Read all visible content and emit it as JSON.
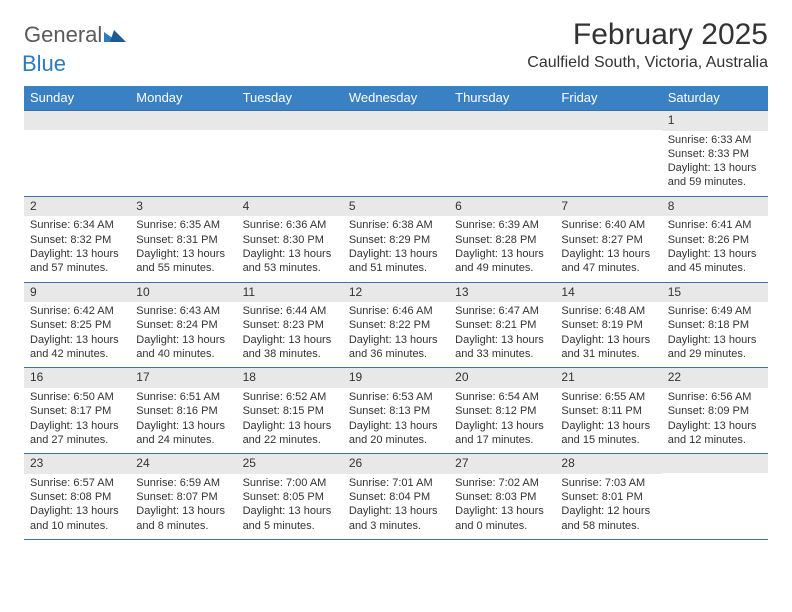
{
  "brand": {
    "word1": "General",
    "word2": "Blue"
  },
  "title": "February 2025",
  "location": "Caulfield South, Victoria, Australia",
  "colors": {
    "header_bg": "#3a81c4",
    "header_text": "#ffffff",
    "rule": "#3c6fa8",
    "daynum_bg": "#e8e8e8",
    "text": "#333333",
    "brand_blue": "#2b7bbf",
    "brand_gray": "#5a5a5a"
  },
  "weekdays": [
    "Sunday",
    "Monday",
    "Tuesday",
    "Wednesday",
    "Thursday",
    "Friday",
    "Saturday"
  ],
  "weeks": [
    [
      {
        "n": "",
        "sunrise": "",
        "sunset": "",
        "daylight": ""
      },
      {
        "n": "",
        "sunrise": "",
        "sunset": "",
        "daylight": ""
      },
      {
        "n": "",
        "sunrise": "",
        "sunset": "",
        "daylight": ""
      },
      {
        "n": "",
        "sunrise": "",
        "sunset": "",
        "daylight": ""
      },
      {
        "n": "",
        "sunrise": "",
        "sunset": "",
        "daylight": ""
      },
      {
        "n": "",
        "sunrise": "",
        "sunset": "",
        "daylight": ""
      },
      {
        "n": "1",
        "sunrise": "Sunrise: 6:33 AM",
        "sunset": "Sunset: 8:33 PM",
        "daylight": "Daylight: 13 hours and 59 minutes."
      }
    ],
    [
      {
        "n": "2",
        "sunrise": "Sunrise: 6:34 AM",
        "sunset": "Sunset: 8:32 PM",
        "daylight": "Daylight: 13 hours and 57 minutes."
      },
      {
        "n": "3",
        "sunrise": "Sunrise: 6:35 AM",
        "sunset": "Sunset: 8:31 PM",
        "daylight": "Daylight: 13 hours and 55 minutes."
      },
      {
        "n": "4",
        "sunrise": "Sunrise: 6:36 AM",
        "sunset": "Sunset: 8:30 PM",
        "daylight": "Daylight: 13 hours and 53 minutes."
      },
      {
        "n": "5",
        "sunrise": "Sunrise: 6:38 AM",
        "sunset": "Sunset: 8:29 PM",
        "daylight": "Daylight: 13 hours and 51 minutes."
      },
      {
        "n": "6",
        "sunrise": "Sunrise: 6:39 AM",
        "sunset": "Sunset: 8:28 PM",
        "daylight": "Daylight: 13 hours and 49 minutes."
      },
      {
        "n": "7",
        "sunrise": "Sunrise: 6:40 AM",
        "sunset": "Sunset: 8:27 PM",
        "daylight": "Daylight: 13 hours and 47 minutes."
      },
      {
        "n": "8",
        "sunrise": "Sunrise: 6:41 AM",
        "sunset": "Sunset: 8:26 PM",
        "daylight": "Daylight: 13 hours and 45 minutes."
      }
    ],
    [
      {
        "n": "9",
        "sunrise": "Sunrise: 6:42 AM",
        "sunset": "Sunset: 8:25 PM",
        "daylight": "Daylight: 13 hours and 42 minutes."
      },
      {
        "n": "10",
        "sunrise": "Sunrise: 6:43 AM",
        "sunset": "Sunset: 8:24 PM",
        "daylight": "Daylight: 13 hours and 40 minutes."
      },
      {
        "n": "11",
        "sunrise": "Sunrise: 6:44 AM",
        "sunset": "Sunset: 8:23 PM",
        "daylight": "Daylight: 13 hours and 38 minutes."
      },
      {
        "n": "12",
        "sunrise": "Sunrise: 6:46 AM",
        "sunset": "Sunset: 8:22 PM",
        "daylight": "Daylight: 13 hours and 36 minutes."
      },
      {
        "n": "13",
        "sunrise": "Sunrise: 6:47 AM",
        "sunset": "Sunset: 8:21 PM",
        "daylight": "Daylight: 13 hours and 33 minutes."
      },
      {
        "n": "14",
        "sunrise": "Sunrise: 6:48 AM",
        "sunset": "Sunset: 8:19 PM",
        "daylight": "Daylight: 13 hours and 31 minutes."
      },
      {
        "n": "15",
        "sunrise": "Sunrise: 6:49 AM",
        "sunset": "Sunset: 8:18 PM",
        "daylight": "Daylight: 13 hours and 29 minutes."
      }
    ],
    [
      {
        "n": "16",
        "sunrise": "Sunrise: 6:50 AM",
        "sunset": "Sunset: 8:17 PM",
        "daylight": "Daylight: 13 hours and 27 minutes."
      },
      {
        "n": "17",
        "sunrise": "Sunrise: 6:51 AM",
        "sunset": "Sunset: 8:16 PM",
        "daylight": "Daylight: 13 hours and 24 minutes."
      },
      {
        "n": "18",
        "sunrise": "Sunrise: 6:52 AM",
        "sunset": "Sunset: 8:15 PM",
        "daylight": "Daylight: 13 hours and 22 minutes."
      },
      {
        "n": "19",
        "sunrise": "Sunrise: 6:53 AM",
        "sunset": "Sunset: 8:13 PM",
        "daylight": "Daylight: 13 hours and 20 minutes."
      },
      {
        "n": "20",
        "sunrise": "Sunrise: 6:54 AM",
        "sunset": "Sunset: 8:12 PM",
        "daylight": "Daylight: 13 hours and 17 minutes."
      },
      {
        "n": "21",
        "sunrise": "Sunrise: 6:55 AM",
        "sunset": "Sunset: 8:11 PM",
        "daylight": "Daylight: 13 hours and 15 minutes."
      },
      {
        "n": "22",
        "sunrise": "Sunrise: 6:56 AM",
        "sunset": "Sunset: 8:09 PM",
        "daylight": "Daylight: 13 hours and 12 minutes."
      }
    ],
    [
      {
        "n": "23",
        "sunrise": "Sunrise: 6:57 AM",
        "sunset": "Sunset: 8:08 PM",
        "daylight": "Daylight: 13 hours and 10 minutes."
      },
      {
        "n": "24",
        "sunrise": "Sunrise: 6:59 AM",
        "sunset": "Sunset: 8:07 PM",
        "daylight": "Daylight: 13 hours and 8 minutes."
      },
      {
        "n": "25",
        "sunrise": "Sunrise: 7:00 AM",
        "sunset": "Sunset: 8:05 PM",
        "daylight": "Daylight: 13 hours and 5 minutes."
      },
      {
        "n": "26",
        "sunrise": "Sunrise: 7:01 AM",
        "sunset": "Sunset: 8:04 PM",
        "daylight": "Daylight: 13 hours and 3 minutes."
      },
      {
        "n": "27",
        "sunrise": "Sunrise: 7:02 AM",
        "sunset": "Sunset: 8:03 PM",
        "daylight": "Daylight: 13 hours and 0 minutes."
      },
      {
        "n": "28",
        "sunrise": "Sunrise: 7:03 AM",
        "sunset": "Sunset: 8:01 PM",
        "daylight": "Daylight: 12 hours and 58 minutes."
      },
      {
        "n": "",
        "sunrise": "",
        "sunset": "",
        "daylight": ""
      }
    ]
  ]
}
